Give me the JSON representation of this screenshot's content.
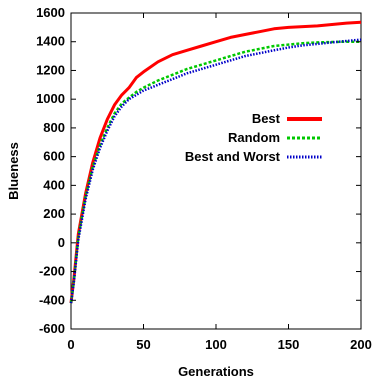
{
  "chart_data": {
    "type": "line",
    "xlabel": "Generations",
    "ylabel": "Blueness",
    "xlim": [
      0,
      200
    ],
    "ylim": [
      -600,
      1600
    ],
    "x_ticks": [
      0,
      50,
      100,
      150,
      200
    ],
    "y_ticks": [
      -600,
      -400,
      -200,
      0,
      200,
      400,
      600,
      800,
      1000,
      1200,
      1400,
      1600
    ],
    "grid": false,
    "legend_position": "right",
    "x": [
      0,
      2,
      5,
      10,
      15,
      20,
      25,
      30,
      35,
      40,
      45,
      50,
      60,
      70,
      80,
      90,
      100,
      110,
      120,
      130,
      140,
      150,
      160,
      170,
      180,
      190,
      200
    ],
    "series": [
      {
        "name": "Best",
        "color": "#ff0000",
        "style": "solid",
        "values": [
          -420,
          -250,
          60,
          340,
          560,
          730,
          860,
          960,
          1030,
          1080,
          1150,
          1190,
          1260,
          1310,
          1340,
          1370,
          1400,
          1430,
          1450,
          1470,
          1490,
          1500,
          1505,
          1510,
          1520,
          1530,
          1535
        ]
      },
      {
        "name": "Random",
        "color": "#00c800",
        "style": "dashed",
        "values": [
          -420,
          -260,
          40,
          320,
          530,
          680,
          800,
          900,
          970,
          1010,
          1050,
          1080,
          1130,
          1170,
          1210,
          1240,
          1270,
          1300,
          1330,
          1350,
          1370,
          1380,
          1390,
          1395,
          1398,
          1400,
          1400
        ]
      },
      {
        "name": "Best and Worst",
        "color": "#0000c8",
        "style": "dotted",
        "values": [
          -420,
          -270,
          20,
          300,
          510,
          660,
          780,
          880,
          950,
          1000,
          1030,
          1060,
          1100,
          1140,
          1180,
          1210,
          1240,
          1270,
          1300,
          1320,
          1340,
          1360,
          1375,
          1385,
          1395,
          1405,
          1415
        ]
      }
    ]
  }
}
